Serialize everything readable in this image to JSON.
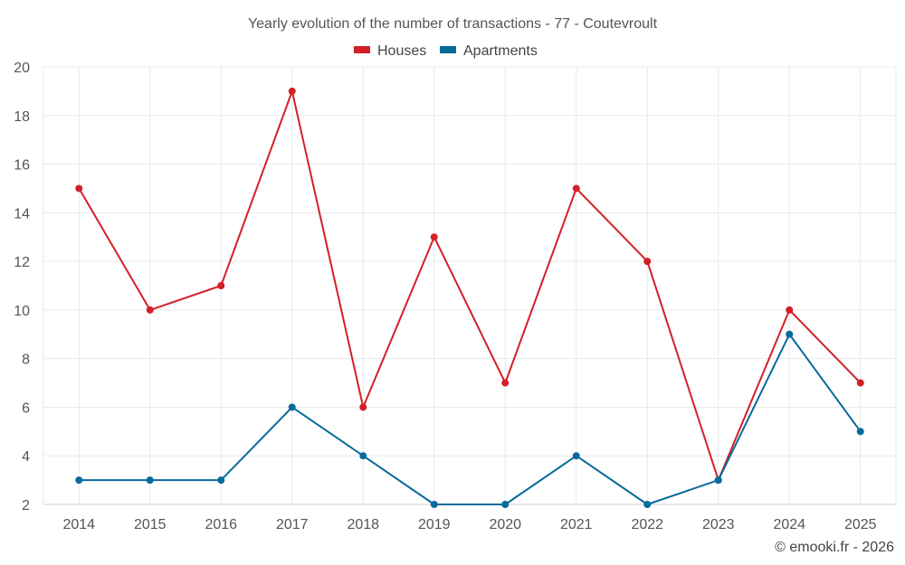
{
  "chart_data": {
    "type": "line",
    "title": "Yearly evolution of the number of transactions - 77 - Coutevroult",
    "x": [
      "2014",
      "2015",
      "2016",
      "2017",
      "2018",
      "2019",
      "2020",
      "2021",
      "2022",
      "2023",
      "2024",
      "2025"
    ],
    "series": [
      {
        "name": "Houses",
        "color": "#d32027",
        "values": [
          15,
          10,
          11,
          19,
          6,
          13,
          7,
          15,
          12,
          3,
          10,
          7
        ]
      },
      {
        "name": "Apartments",
        "color": "#066b9b",
        "values": [
          3,
          3,
          3,
          6,
          4,
          2,
          2,
          4,
          2,
          3,
          9,
          5
        ]
      }
    ],
    "ylim": [
      2,
      20
    ],
    "yticks": [
      2,
      4,
      6,
      8,
      10,
      12,
      14,
      16,
      18,
      20
    ],
    "grid": true,
    "legend_position": "top-center"
  },
  "credit": "© emooki.fr - 2026"
}
